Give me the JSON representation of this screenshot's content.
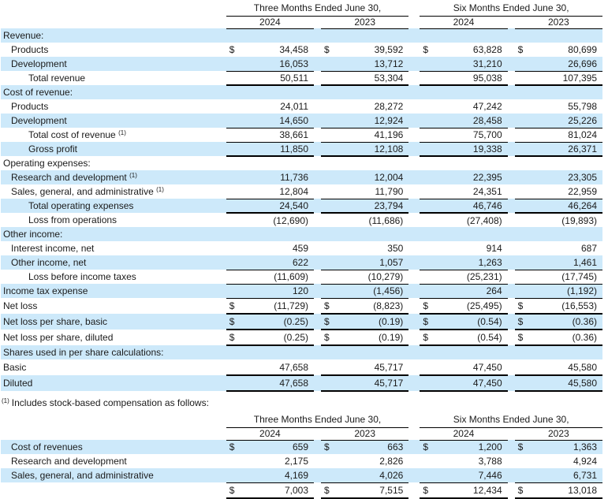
{
  "colors": {
    "stripe": "#cde9fa",
    "rule": "#000000",
    "text": "#1b1b1b",
    "background": "#ffffff"
  },
  "table1": {
    "group_headers": [
      "Three Months Ended June 30,",
      "Six Months Ended June 30,"
    ],
    "year_headers": [
      "2024",
      "2023",
      "2024",
      "2023"
    ],
    "rows": [
      {
        "label": "Revenue:",
        "indent": 0,
        "shaded": true,
        "dollar": false,
        "sup": "",
        "border": "none",
        "tall": false,
        "values": [
          "",
          "",
          "",
          ""
        ]
      },
      {
        "label": "Products",
        "indent": 1,
        "shaded": false,
        "dollar": true,
        "sup": "",
        "border": "none",
        "tall": false,
        "values": [
          "34,458",
          "39,592",
          "63,828",
          "80,699"
        ]
      },
      {
        "label": "Development",
        "indent": 1,
        "shaded": true,
        "dollar": false,
        "sup": "",
        "border": "thin",
        "tall": false,
        "values": [
          "16,053",
          "13,712",
          "31,210",
          "26,696"
        ]
      },
      {
        "label": "Total revenue",
        "indent": 2,
        "shaded": false,
        "dollar": false,
        "sup": "",
        "border": "thick",
        "tall": false,
        "values": [
          "50,511",
          "53,304",
          "95,038",
          "107,395"
        ]
      },
      {
        "label": "Cost of revenue:",
        "indent": 0,
        "shaded": true,
        "dollar": false,
        "sup": "",
        "border": "none",
        "tall": false,
        "values": [
          "",
          "",
          "",
          ""
        ]
      },
      {
        "label": "Products",
        "indent": 1,
        "shaded": false,
        "dollar": false,
        "sup": "",
        "border": "none",
        "tall": false,
        "values": [
          "24,011",
          "28,272",
          "47,242",
          "55,798"
        ]
      },
      {
        "label": "Development",
        "indent": 1,
        "shaded": true,
        "dollar": false,
        "sup": "",
        "border": "thin",
        "tall": false,
        "values": [
          "14,650",
          "12,924",
          "28,458",
          "25,226"
        ]
      },
      {
        "label": "Total cost of revenue",
        "indent": 2,
        "shaded": false,
        "dollar": false,
        "sup": "(1)",
        "border": "thin",
        "tall": false,
        "values": [
          "38,661",
          "41,196",
          "75,700",
          "81,024"
        ]
      },
      {
        "label": "Gross profit",
        "indent": 2,
        "shaded": true,
        "dollar": false,
        "sup": "",
        "border": "thick",
        "tall": false,
        "values": [
          "11,850",
          "12,108",
          "19,338",
          "26,371"
        ]
      },
      {
        "label": "Operating expenses:",
        "indent": 0,
        "shaded": false,
        "dollar": false,
        "sup": "",
        "border": "none",
        "tall": false,
        "values": [
          "",
          "",
          "",
          ""
        ]
      },
      {
        "label": "Research and development",
        "indent": 1,
        "shaded": true,
        "dollar": false,
        "sup": "(1)",
        "border": "none",
        "tall": false,
        "values": [
          "11,736",
          "12,004",
          "22,395",
          "23,305"
        ]
      },
      {
        "label": "Sales, general, and administrative",
        "indent": 1,
        "shaded": false,
        "dollar": false,
        "sup": "(1)",
        "border": "thin",
        "tall": false,
        "values": [
          "12,804",
          "11,790",
          "24,351",
          "22,959"
        ]
      },
      {
        "label": "Total operating expenses",
        "indent": 2,
        "shaded": true,
        "dollar": false,
        "sup": "",
        "border": "thick",
        "tall": false,
        "values": [
          "24,540",
          "23,794",
          "46,746",
          "46,264"
        ]
      },
      {
        "label": "Loss from operations",
        "indent": 2,
        "shaded": false,
        "dollar": false,
        "sup": "",
        "border": "none",
        "tall": false,
        "values": [
          "(12,690)",
          "(11,686)",
          "(27,408)",
          "(19,893)"
        ]
      },
      {
        "label": "Other income:",
        "indent": 0,
        "shaded": true,
        "dollar": false,
        "sup": "",
        "border": "none",
        "tall": false,
        "values": [
          "",
          "",
          "",
          ""
        ]
      },
      {
        "label": "Interest income, net",
        "indent": 1,
        "shaded": false,
        "dollar": false,
        "sup": "",
        "border": "none",
        "tall": false,
        "values": [
          "459",
          "350",
          "914",
          "687"
        ]
      },
      {
        "label": "Other income, net",
        "indent": 1,
        "shaded": true,
        "dollar": false,
        "sup": "",
        "border": "thin",
        "tall": false,
        "values": [
          "622",
          "1,057",
          "1,263",
          "1,461"
        ]
      },
      {
        "label": "Loss before income taxes",
        "indent": 2,
        "shaded": false,
        "dollar": false,
        "sup": "",
        "border": "thin",
        "tall": false,
        "values": [
          "(11,609)",
          "(10,279)",
          "(25,231)",
          "(17,745)"
        ]
      },
      {
        "label": "Income tax expense",
        "indent": 0,
        "shaded": true,
        "dollar": false,
        "sup": "",
        "border": "thin",
        "tall": false,
        "values": [
          "120",
          "(1,456)",
          "264",
          "(1,192)"
        ]
      },
      {
        "label": "Net loss",
        "indent": 0,
        "shaded": false,
        "dollar": true,
        "sup": "",
        "border": "thick",
        "tall": true,
        "values": [
          "(11,729)",
          "(8,823)",
          "(25,495)",
          "(16,553)"
        ]
      },
      {
        "label": "Net loss per share, basic",
        "indent": 0,
        "shaded": true,
        "dollar": true,
        "sup": "",
        "border": "thick",
        "tall": true,
        "values": [
          "(0.25)",
          "(0.19)",
          "(0.54)",
          "(0.36)"
        ]
      },
      {
        "label": "Net loss per share, diluted",
        "indent": 0,
        "shaded": false,
        "dollar": true,
        "sup": "",
        "border": "thick",
        "tall": true,
        "values": [
          "(0.25)",
          "(0.19)",
          "(0.54)",
          "(0.36)"
        ]
      },
      {
        "label": "Shares used in per share calculations:",
        "indent": 0,
        "shaded": true,
        "dollar": false,
        "sup": "",
        "border": "none",
        "tall": false,
        "values": [
          "",
          "",
          "",
          ""
        ]
      },
      {
        "label": "Basic",
        "indent": 0,
        "shaded": false,
        "dollar": false,
        "sup": "",
        "border": "thick",
        "tall": true,
        "values": [
          "47,658",
          "45,717",
          "47,450",
          "45,580"
        ]
      },
      {
        "label": "Diluted",
        "indent": 0,
        "shaded": true,
        "dollar": false,
        "sup": "",
        "border": "thick",
        "tall": true,
        "values": [
          "47,658",
          "45,717",
          "47,450",
          "45,580"
        ]
      }
    ]
  },
  "footnote": {
    "marker": "(1)",
    "text": "Includes stock-based compensation as follows:"
  },
  "table2": {
    "group_headers": [
      "Three Months Ended June 30,",
      "Six Months Ended June 30,"
    ],
    "year_headers": [
      "2024",
      "2023",
      "2024",
      "2023"
    ],
    "rows": [
      {
        "label": "Cost of revenues",
        "indent": 1,
        "shaded": true,
        "dollar": true,
        "sup": "",
        "border": "none",
        "tall": false,
        "values": [
          "659",
          "663",
          "1,200",
          "1,363"
        ]
      },
      {
        "label": "Research and development",
        "indent": 1,
        "shaded": false,
        "dollar": false,
        "sup": "",
        "border": "none",
        "tall": false,
        "values": [
          "2,175",
          "2,826",
          "3,788",
          "4,924"
        ]
      },
      {
        "label": "Sales, general, and administrative",
        "indent": 1,
        "shaded": true,
        "dollar": false,
        "sup": "",
        "border": "thin",
        "tall": false,
        "values": [
          "4,169",
          "4,026",
          "7,446",
          "6,731"
        ]
      },
      {
        "label": "",
        "indent": 0,
        "shaded": false,
        "dollar": true,
        "sup": "",
        "border": "thick",
        "tall": true,
        "values": [
          "7,003",
          "7,515",
          "12,434",
          "13,018"
        ]
      }
    ]
  }
}
